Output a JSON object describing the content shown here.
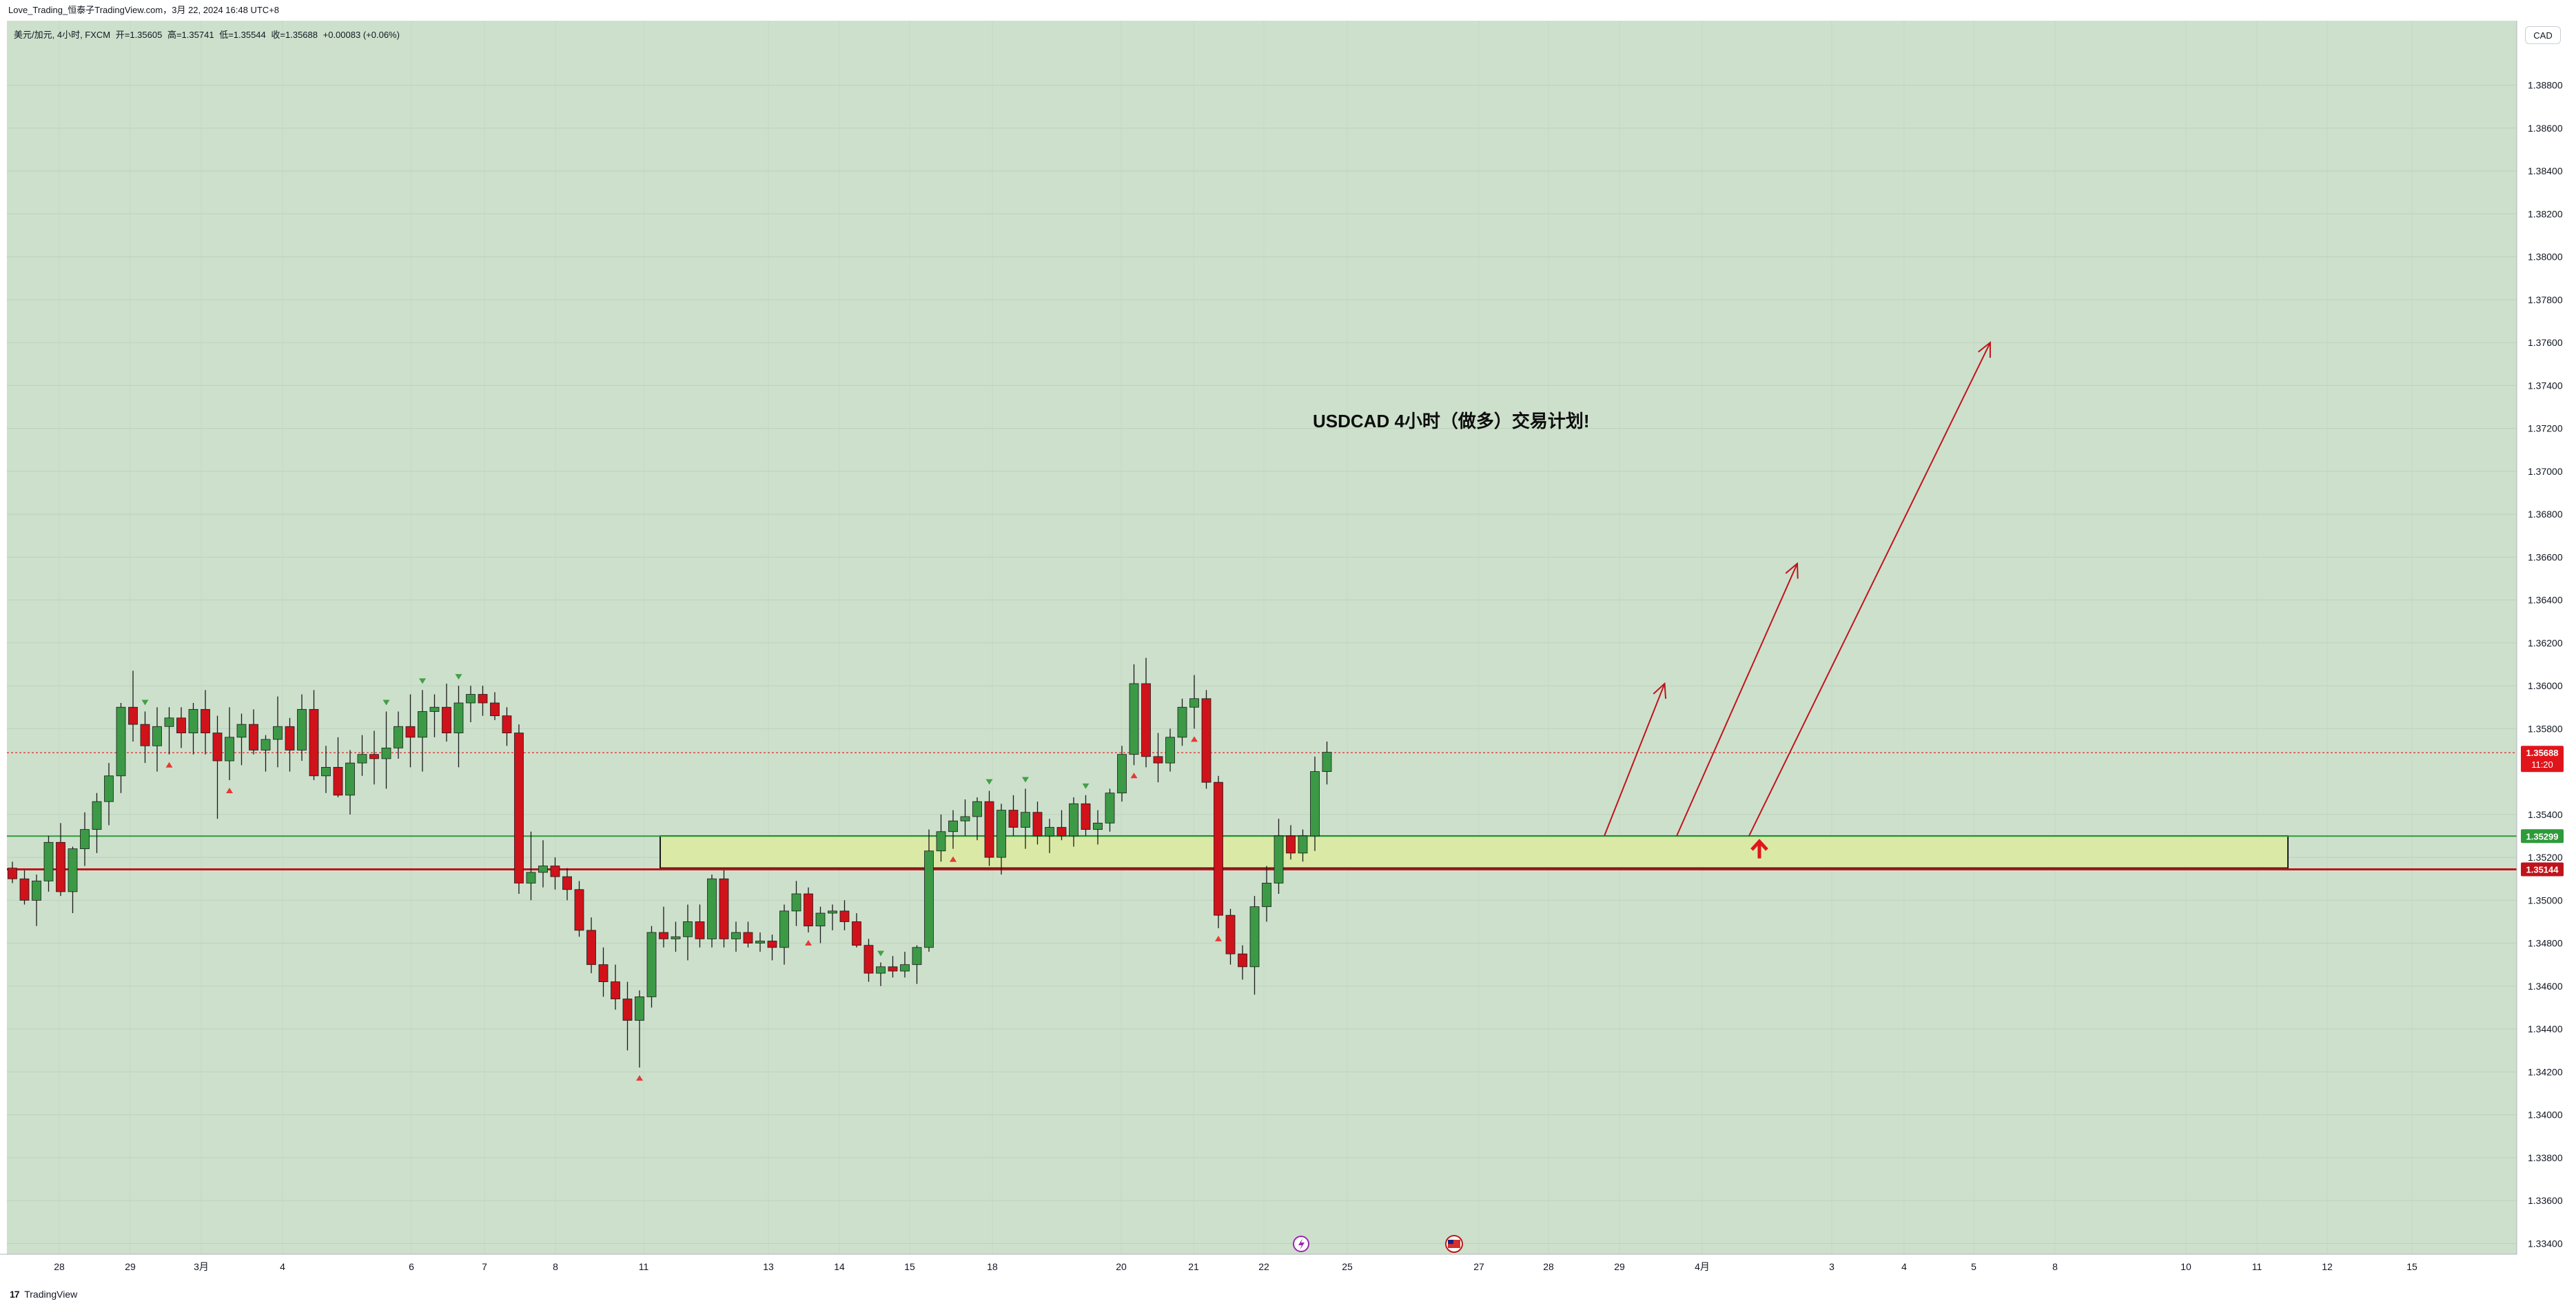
{
  "header": {
    "title": "Love_Trading_恒泰子TradingView.com，3月 22, 2024 16:48 UTC+8"
  },
  "legend": {
    "symbol": "美元/加元, 4小时, FXCM",
    "open": "开=1.35605",
    "high": "高=1.35741",
    "low": "低=1.35544",
    "close": "收=1.35688",
    "change": "+0.00083 (+0.06%)"
  },
  "currency_button": "CAD",
  "annotation": "USDCAD  4小时（做多）交易计划!",
  "price_axis": {
    "ticks": [
      "1.38800",
      "1.38600",
      "1.38400",
      "1.38200",
      "1.38000",
      "1.37800",
      "1.37600",
      "1.37400",
      "1.37200",
      "1.37000",
      "1.36800",
      "1.36600",
      "1.36400",
      "1.36200",
      "1.36000",
      "1.35800",
      "1.35400",
      "1.35200",
      "1.35000",
      "1.34800",
      "1.34600",
      "1.34400",
      "1.34200",
      "1.34000",
      "1.33800",
      "1.33600",
      "1.33400"
    ],
    "current_price": "1.35688",
    "countdown": "11:20",
    "green_level": "1.35299",
    "red_level": "1.35144"
  },
  "time_axis": {
    "labels": [
      "28",
      "29",
      "3月",
      "4",
      "6",
      "7",
      "8",
      "11",
      "13",
      "14",
      "15",
      "18",
      "20",
      "21",
      "22",
      "25",
      "27",
      "28",
      "29",
      "4月",
      "3",
      "4",
      "5",
      "8",
      "10",
      "11",
      "12",
      "15"
    ]
  },
  "chart_data": {
    "type": "candlestick",
    "symbol": "USDCAD",
    "timeframe": "4小时",
    "ylim": [
      1.333,
      1.3895
    ],
    "levels": {
      "current": 1.35688,
      "support_top": 1.35299,
      "support_bottom": 1.35144
    },
    "zone": {
      "top": 1.353,
      "bottom": 1.3515
    },
    "candles": [
      [
        1.3515,
        1.3518,
        1.3508,
        1.351
      ],
      [
        1.351,
        1.3514,
        1.3498,
        1.35
      ],
      [
        1.35,
        1.3512,
        1.3488,
        1.3509
      ],
      [
        1.3509,
        1.353,
        1.3504,
        1.3527
      ],
      [
        1.3527,
        1.3536,
        1.3502,
        1.3504
      ],
      [
        1.3504,
        1.3525,
        1.3494,
        1.3524
      ],
      [
        1.3524,
        1.3541,
        1.3516,
        1.3533
      ],
      [
        1.3533,
        1.355,
        1.3522,
        1.3546
      ],
      [
        1.3546,
        1.3564,
        1.3535,
        1.3558
      ],
      [
        1.3558,
        1.3592,
        1.355,
        1.359
      ],
      [
        1.359,
        1.3607,
        1.3574,
        1.3582
      ],
      [
        1.3582,
        1.3588,
        1.3564,
        1.3572
      ],
      [
        1.3572,
        1.359,
        1.356,
        1.3581
      ],
      [
        1.3581,
        1.359,
        1.3568,
        1.3585
      ],
      [
        1.3585,
        1.359,
        1.3571,
        1.3578
      ],
      [
        1.3578,
        1.3592,
        1.3568,
        1.3589
      ],
      [
        1.3589,
        1.3598,
        1.3568,
        1.3578
      ],
      [
        1.3578,
        1.3586,
        1.3538,
        1.3565
      ],
      [
        1.3565,
        1.359,
        1.3556,
        1.3576
      ],
      [
        1.3576,
        1.3587,
        1.3563,
        1.3582
      ],
      [
        1.3582,
        1.3589,
        1.3568,
        1.357
      ],
      [
        1.357,
        1.3577,
        1.356,
        1.3575
      ],
      [
        1.3575,
        1.3595,
        1.3562,
        1.3581
      ],
      [
        1.3581,
        1.3585,
        1.356,
        1.357
      ],
      [
        1.357,
        1.3596,
        1.3565,
        1.3589
      ],
      [
        1.3589,
        1.3598,
        1.3556,
        1.3558
      ],
      [
        1.3558,
        1.3572,
        1.355,
        1.3562
      ],
      [
        1.3562,
        1.3576,
        1.3548,
        1.3549
      ],
      [
        1.3549,
        1.357,
        1.354,
        1.3564
      ],
      [
        1.3564,
        1.3577,
        1.3558,
        1.3568
      ],
      [
        1.3568,
        1.3579,
        1.3554,
        1.3566
      ],
      [
        1.3566,
        1.3588,
        1.3552,
        1.3571
      ],
      [
        1.3571,
        1.3588,
        1.3566,
        1.3581
      ],
      [
        1.3581,
        1.3596,
        1.3562,
        1.3576
      ],
      [
        1.3576,
        1.3598,
        1.356,
        1.3588
      ],
      [
        1.3588,
        1.3596,
        1.3576,
        1.359
      ],
      [
        1.359,
        1.3601,
        1.3574,
        1.3578
      ],
      [
        1.3578,
        1.36,
        1.3562,
        1.3592
      ],
      [
        1.3592,
        1.36,
        1.3583,
        1.3596
      ],
      [
        1.3596,
        1.36,
        1.3586,
        1.3592
      ],
      [
        1.3592,
        1.3597,
        1.3584,
        1.3586
      ],
      [
        1.3586,
        1.359,
        1.3572,
        1.3578
      ],
      [
        1.3578,
        1.3582,
        1.3503,
        1.3508
      ],
      [
        1.3508,
        1.3532,
        1.35,
        1.3513
      ],
      [
        1.3513,
        1.3528,
        1.3506,
        1.3516
      ],
      [
        1.3516,
        1.352,
        1.3505,
        1.3511
      ],
      [
        1.3511,
        1.3515,
        1.35,
        1.3505
      ],
      [
        1.3505,
        1.3509,
        1.3483,
        1.3486
      ],
      [
        1.3486,
        1.3492,
        1.3466,
        1.347
      ],
      [
        1.347,
        1.3478,
        1.3455,
        1.3462
      ],
      [
        1.3462,
        1.347,
        1.3449,
        1.3454
      ],
      [
        1.3454,
        1.3462,
        1.343,
        1.3444
      ],
      [
        1.3444,
        1.3458,
        1.3422,
        1.3455
      ],
      [
        1.3455,
        1.3488,
        1.345,
        1.3485
      ],
      [
        1.3485,
        1.3497,
        1.3478,
        1.3482
      ],
      [
        1.3482,
        1.349,
        1.3476,
        1.3483
      ],
      [
        1.3483,
        1.3498,
        1.3472,
        1.349
      ],
      [
        1.349,
        1.3498,
        1.3478,
        1.3482
      ],
      [
        1.3482,
        1.3512,
        1.3478,
        1.351
      ],
      [
        1.351,
        1.3514,
        1.3478,
        1.3482
      ],
      [
        1.3482,
        1.349,
        1.3476,
        1.3485
      ],
      [
        1.3485,
        1.349,
        1.3478,
        1.348
      ],
      [
        1.348,
        1.3485,
        1.3476,
        1.3481
      ],
      [
        1.3481,
        1.3484,
        1.3472,
        1.3478
      ],
      [
        1.3478,
        1.3498,
        1.347,
        1.3495
      ],
      [
        1.3495,
        1.3509,
        1.3488,
        1.3503
      ],
      [
        1.3503,
        1.3506,
        1.3485,
        1.3488
      ],
      [
        1.3488,
        1.3497,
        1.348,
        1.3494
      ],
      [
        1.3494,
        1.3498,
        1.3486,
        1.3495
      ],
      [
        1.3495,
        1.35,
        1.3486,
        1.349
      ],
      [
        1.349,
        1.3494,
        1.3478,
        1.3479
      ],
      [
        1.3479,
        1.3482,
        1.3462,
        1.3466
      ],
      [
        1.3466,
        1.3471,
        1.346,
        1.3469
      ],
      [
        1.3469,
        1.3474,
        1.3464,
        1.3467
      ],
      [
        1.3467,
        1.3476,
        1.3464,
        1.347
      ],
      [
        1.347,
        1.3479,
        1.3461,
        1.3478
      ],
      [
        1.3478,
        1.3533,
        1.3476,
        1.3523
      ],
      [
        1.3523,
        1.354,
        1.3518,
        1.3532
      ],
      [
        1.3532,
        1.3542,
        1.3524,
        1.3537
      ],
      [
        1.3537,
        1.3547,
        1.353,
        1.3539
      ],
      [
        1.3539,
        1.3548,
        1.3528,
        1.3546
      ],
      [
        1.3546,
        1.3551,
        1.3516,
        1.352
      ],
      [
        1.352,
        1.3545,
        1.3512,
        1.3542
      ],
      [
        1.3542,
        1.3549,
        1.353,
        1.3534
      ],
      [
        1.3534,
        1.3552,
        1.3524,
        1.3541
      ],
      [
        1.3541,
        1.3546,
        1.3526,
        1.353
      ],
      [
        1.353,
        1.3538,
        1.3522,
        1.3534
      ],
      [
        1.3534,
        1.3542,
        1.3528,
        1.353
      ],
      [
        1.353,
        1.3548,
        1.3525,
        1.3545
      ],
      [
        1.3545,
        1.3549,
        1.353,
        1.3533
      ],
      [
        1.3533,
        1.3542,
        1.3526,
        1.3536
      ],
      [
        1.3536,
        1.3552,
        1.3532,
        1.355
      ],
      [
        1.355,
        1.3572,
        1.3546,
        1.3568
      ],
      [
        1.3568,
        1.361,
        1.3563,
        1.3601
      ],
      [
        1.3601,
        1.3613,
        1.3562,
        1.3567
      ],
      [
        1.3567,
        1.3578,
        1.3555,
        1.3564
      ],
      [
        1.3564,
        1.358,
        1.356,
        1.3576
      ],
      [
        1.3576,
        1.3594,
        1.3572,
        1.359
      ],
      [
        1.359,
        1.3605,
        1.358,
        1.3594
      ],
      [
        1.3594,
        1.3598,
        1.3552,
        1.3555
      ],
      [
        1.3555,
        1.3558,
        1.3487,
        1.3493
      ],
      [
        1.3493,
        1.3496,
        1.347,
        1.3475
      ],
      [
        1.3475,
        1.3479,
        1.3463,
        1.3469
      ],
      [
        1.3469,
        1.3502,
        1.3456,
        1.3497
      ],
      [
        1.3497,
        1.3516,
        1.349,
        1.3508
      ],
      [
        1.3508,
        1.3538,
        1.3503,
        1.353
      ],
      [
        1.353,
        1.3535,
        1.3519,
        1.3522
      ],
      [
        1.3522,
        1.3533,
        1.3518,
        1.353
      ],
      [
        1.353,
        1.3567,
        1.3523,
        1.356
      ],
      [
        1.356,
        1.3574,
        1.3554,
        1.3569
      ]
    ],
    "swing_markers": [
      {
        "index": 11,
        "kind": "high"
      },
      {
        "index": 13,
        "kind": "low"
      },
      {
        "index": 18,
        "kind": "low"
      },
      {
        "index": 31,
        "kind": "high"
      },
      {
        "index": 34,
        "kind": "high"
      },
      {
        "index": 37,
        "kind": "high"
      },
      {
        "index": 52,
        "kind": "low"
      },
      {
        "index": 66,
        "kind": "low"
      },
      {
        "index": 72,
        "kind": "high"
      },
      {
        "index": 78,
        "kind": "low"
      },
      {
        "index": 81,
        "kind": "high"
      },
      {
        "index": 84,
        "kind": "high"
      },
      {
        "index": 89,
        "kind": "high"
      },
      {
        "index": 93,
        "kind": "low"
      },
      {
        "index": 98,
        "kind": "low"
      },
      {
        "index": 100,
        "kind": "low"
      }
    ],
    "projection_arrows": [
      {
        "from_date_index": 132,
        "from_price": 1.353,
        "to_date_index": 137,
        "to_price": 1.3601
      },
      {
        "from_date_index": 138,
        "from_price": 1.353,
        "to_date_index": 148,
        "to_price": 1.3657
      },
      {
        "from_date_index": 144,
        "from_price": 1.353,
        "to_date_index": 164,
        "to_price": 1.376
      }
    ]
  }
}
